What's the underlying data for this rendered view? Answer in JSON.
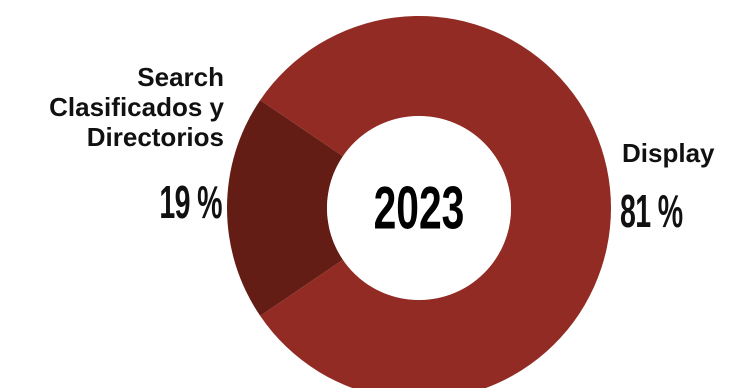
{
  "chart_data": {
    "type": "pie",
    "center_label": "2023",
    "categories": [
      "Search Clasificados y Directorios",
      "Display"
    ],
    "values": [
      19,
      81
    ],
    "value_labels": [
      "19 %",
      "81 %"
    ],
    "colors": [
      "#631d14",
      "#922b24"
    ]
  },
  "labels": {
    "search_name": "Search\nClasificados y\nDirectorios",
    "search_value": "19 %",
    "display_name": "Display",
    "display_value": "81 %"
  }
}
